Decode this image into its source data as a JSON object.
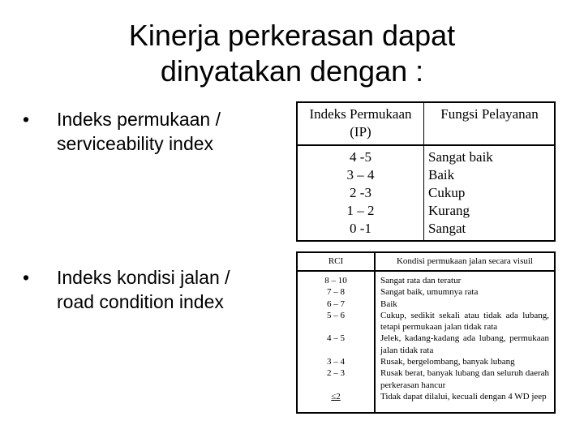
{
  "title": [
    "Kinerja perkerasan dapat",
    "dinyatakan dengan :"
  ],
  "bullets": [
    {
      "lines": [
        "Indeks permukaan /",
        "serviceability index"
      ]
    },
    {
      "lines": [
        "Indeks kondisi jalan /",
        "road condition index"
      ]
    }
  ],
  "table_ip": {
    "headers": [
      "Indeks Permukaan",
      "(IP)",
      "Fungsi Pelayanan"
    ],
    "rows": [
      {
        "ip": "4 -5",
        "fungsi": "Sangat baik"
      },
      {
        "ip": "3 – 4",
        "fungsi": "Baik"
      },
      {
        "ip": "2 -3",
        "fungsi": "Cukup"
      },
      {
        "ip": "1 – 2",
        "fungsi": "Kurang"
      },
      {
        "ip": "0 -1",
        "fungsi": "Sangat"
      }
    ]
  },
  "table_rci": {
    "headers": [
      "RCI",
      "Kondisi permukaan jalan secara visuil"
    ],
    "rows": [
      {
        "rci": "8 – 10",
        "kondisi": "Sangat rata dan teratur"
      },
      {
        "rci": "7 – 8",
        "kondisi": "Sangat baik, umumnya rata"
      },
      {
        "rci": "6 – 7",
        "kondisi": "Baik"
      },
      {
        "rci": "5 – 6",
        "kondisi": "Cukup, sedikit sekali atau tidak ada lubang, tetapi permukaan jalan tidak rata"
      },
      {
        "rci": "4 – 5",
        "kondisi": "Jelek, kadang-kadang ada lubang, permukaan jalan tidak rata"
      },
      {
        "rci": "3 – 4",
        "kondisi": "Rusak, bergelombang, banyak lubang"
      },
      {
        "rci": "2 – 3",
        "kondisi": "Rusak berat, banyak lubang dan seluruh daerah perkerasan hancur"
      },
      {
        "rci": "≤2",
        "kondisi": "Tidak dapat dilalui, kecuali dengan 4 WD jeep"
      }
    ]
  }
}
